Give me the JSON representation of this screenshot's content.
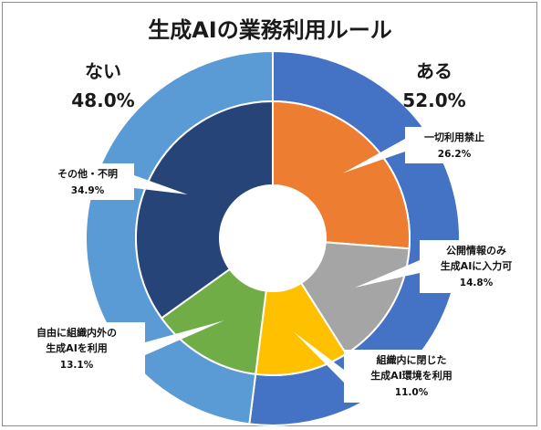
{
  "chart_data": {
    "type": "pie",
    "title": "生成AIの業務利用ルール",
    "outer_ring": {
      "slices": [
        {
          "label": "ある",
          "value": 52.0,
          "value_label": "52.0%",
          "color": "#4472c4"
        },
        {
          "label": "ない",
          "value": 48.0,
          "value_label": "48.0%",
          "color": "#5b9bd5"
        }
      ]
    },
    "inner_ring": {
      "slices": [
        {
          "label_lines": [
            "一切利用禁止"
          ],
          "value": 26.2,
          "value_label": "26.2%",
          "color": "#ed7d31"
        },
        {
          "label_lines": [
            "公開情報のみ",
            "生成AIに入力可"
          ],
          "value": 14.8,
          "value_label": "14.8%",
          "color": "#a5a5a5"
        },
        {
          "label_lines": [
            "組織内に閉じた",
            "生成AI環境を利用"
          ],
          "value": 11.0,
          "value_label": "11.0%",
          "color": "#ffc000"
        },
        {
          "label_lines": [
            "自由に組織内外の",
            "生成AIを利用"
          ],
          "value": 13.1,
          "value_label": "13.1%",
          "color": "#70ad47"
        },
        {
          "label_lines": [
            "その他・不明"
          ],
          "value": 34.9,
          "value_label": "34.9%",
          "color": "#264478"
        }
      ]
    }
  }
}
